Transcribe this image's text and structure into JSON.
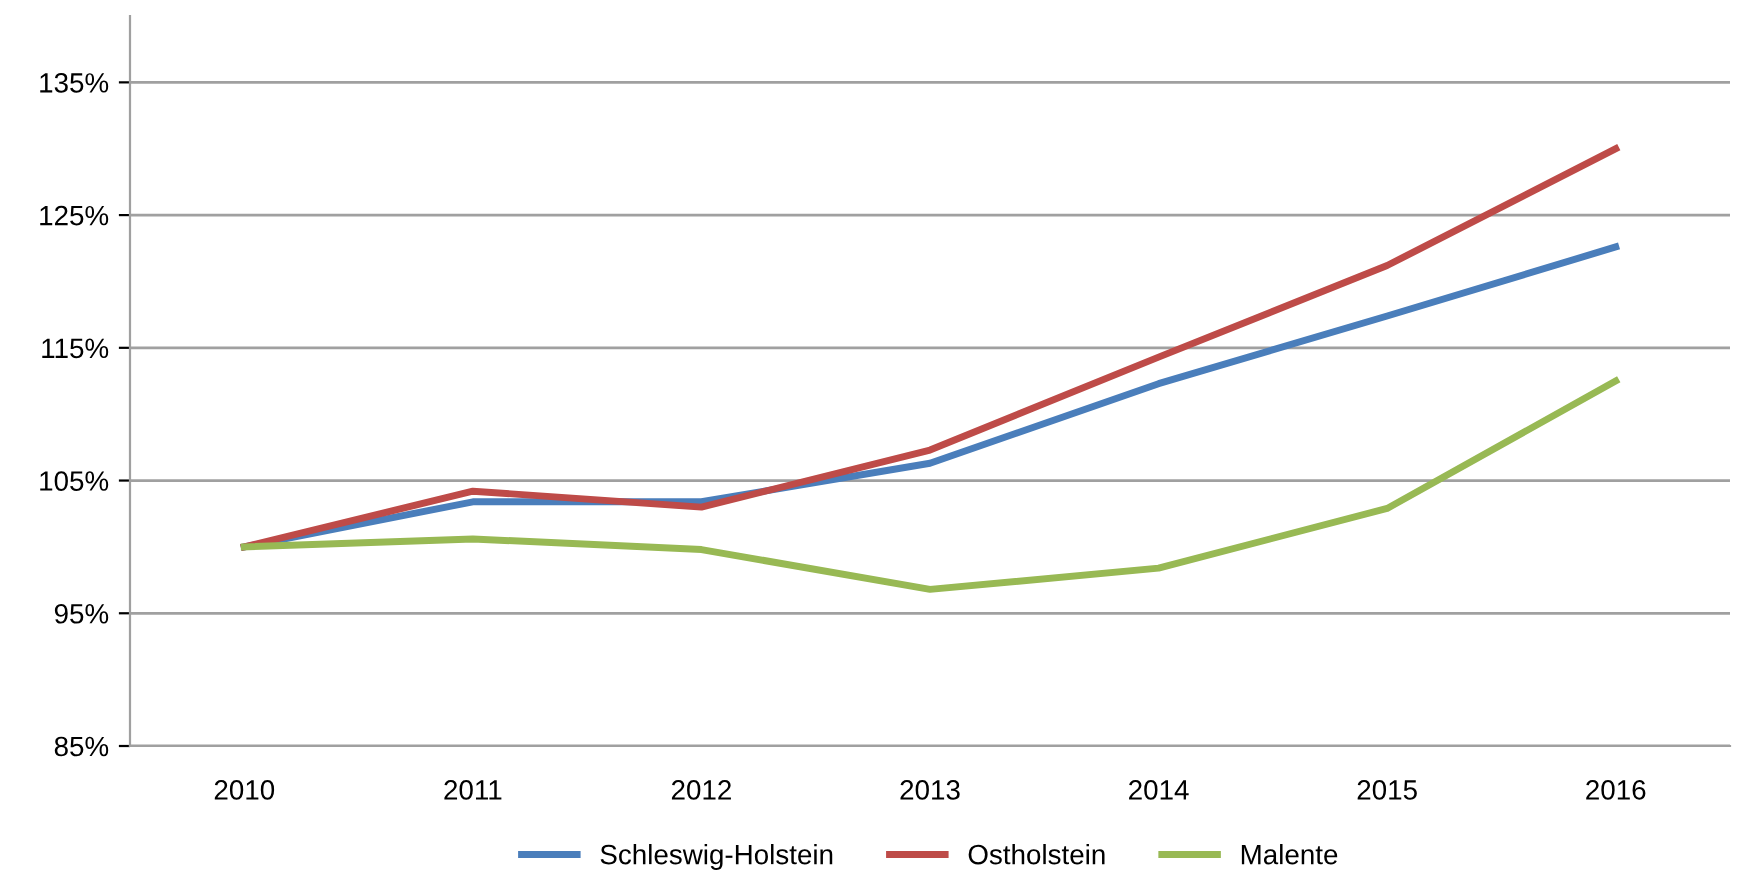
{
  "chart_data": {
    "type": "line",
    "categories": [
      "2010",
      "2011",
      "2012",
      "2013",
      "2014",
      "2015",
      "2016"
    ],
    "series": [
      {
        "name": "Schleswig-Holstein",
        "color": "#4a7ebb",
        "values": [
          100,
          103.4,
          103.4,
          106.3,
          112.3,
          117.4,
          122.6
        ]
      },
      {
        "name": "Ostholstein",
        "color": "#be4b48",
        "values": [
          100,
          104.2,
          103.0,
          107.3,
          114.3,
          121.2,
          130.0
        ]
      },
      {
        "name": "Malente",
        "color": "#98b954",
        "values": [
          100,
          100.6,
          99.8,
          96.8,
          98.4,
          102.9,
          112.5
        ]
      }
    ],
    "ylim": [
      85,
      140
    ],
    "yticks": [
      {
        "value": 85,
        "label": "85%"
      },
      {
        "value": 95,
        "label": "95%"
      },
      {
        "value": 105,
        "label": "105%"
      },
      {
        "value": 115,
        "label": "115%"
      },
      {
        "value": 125,
        "label": "125%"
      },
      {
        "value": 135,
        "label": "135%"
      }
    ],
    "grid": "y",
    "legend": "bottom",
    "line_style": "solid"
  }
}
